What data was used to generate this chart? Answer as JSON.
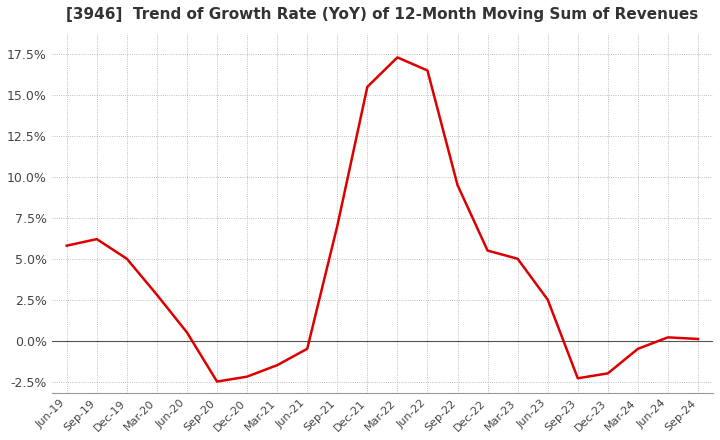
{
  "title": "[3946]  Trend of Growth Rate (YoY) of 12-Month Moving Sum of Revenues",
  "title_fontsize": 11,
  "line_color": "#dd0000",
  "background_color": "#ffffff",
  "grid_color": "#aaaaaa",
  "dates": [
    "Jun-19",
    "Sep-19",
    "Dec-19",
    "Mar-20",
    "Jun-20",
    "Sep-20",
    "Dec-20",
    "Mar-21",
    "Jun-21",
    "Sep-21",
    "Dec-21",
    "Mar-22",
    "Jun-22",
    "Sep-22",
    "Dec-22",
    "Mar-23",
    "Jun-23",
    "Sep-23",
    "Dec-23",
    "Mar-24",
    "Jun-24",
    "Sep-24"
  ],
  "values": [
    5.8,
    6.2,
    5.0,
    2.8,
    0.5,
    -2.5,
    -2.2,
    -1.5,
    -0.5,
    7.0,
    15.5,
    17.3,
    16.5,
    9.5,
    5.5,
    5.0,
    2.5,
    -2.3,
    -2.0,
    -0.5,
    0.2,
    0.1
  ],
  "yticks": [
    -2.5,
    0.0,
    2.5,
    5.0,
    7.5,
    10.0,
    12.5,
    15.0,
    17.5
  ],
  "ylim": [
    -3.2,
    18.8
  ],
  "zero_line_color": "#555555"
}
